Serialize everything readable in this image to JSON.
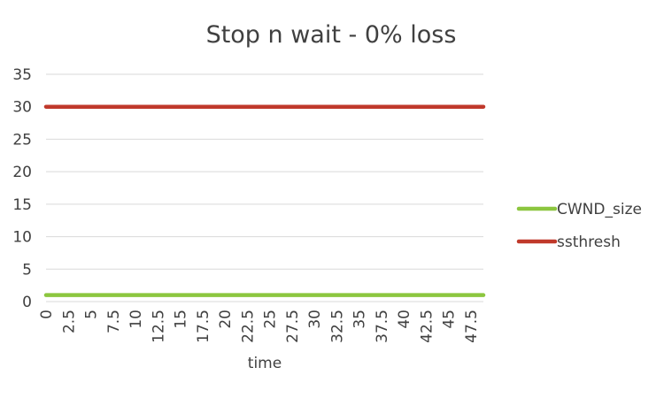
{
  "chart_data": {
    "type": "line",
    "title": "Stop n wait - 0% loss",
    "xlabel": "time",
    "ylabel": "",
    "ylim": [
      0,
      35
    ],
    "yticks": [
      "0",
      "5",
      "10",
      "15",
      "20",
      "25",
      "30",
      "35"
    ],
    "xlim": [
      0,
      48.9
    ],
    "xticks": [
      "0",
      "2.5",
      "5",
      "7.5",
      "10",
      "12.5",
      "15",
      "17.5",
      "20",
      "22.5",
      "25",
      "27.5",
      "30",
      "32.5",
      "35",
      "37.5",
      "40",
      "42.5",
      "45",
      "47.5"
    ],
    "grid": true,
    "legend_position": "right",
    "series": [
      {
        "name": "CWND_size",
        "color": "#8cc63f",
        "x": [
          0,
          48.9
        ],
        "values": [
          1,
          1
        ]
      },
      {
        "name": "ssthresh",
        "color": "#c0392b",
        "x": [
          0,
          48.9
        ],
        "values": [
          30,
          30
        ]
      }
    ]
  }
}
